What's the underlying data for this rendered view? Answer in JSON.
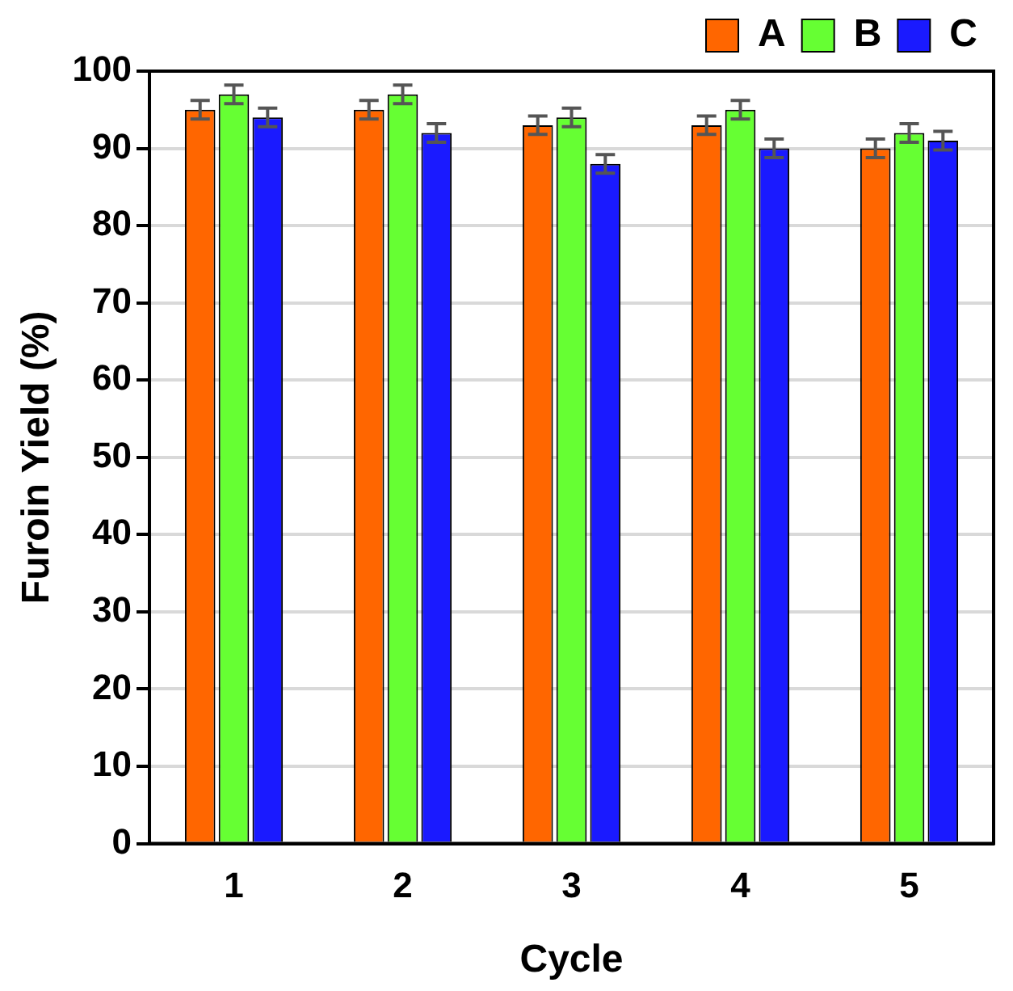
{
  "chart_data": {
    "type": "bar",
    "xlabel": "Cycle",
    "ylabel": "Furoin Yield (%)",
    "categories": [
      "1",
      "2",
      "3",
      "4",
      "5"
    ],
    "series": [
      {
        "name": "A",
        "color": "#ff6600",
        "values": [
          95,
          95,
          93,
          93,
          90
        ],
        "errors": [
          1.2,
          1.2,
          1.2,
          1.2,
          1.2
        ]
      },
      {
        "name": "B",
        "color": "#66ff33",
        "values": [
          97,
          97,
          94,
          95,
          92
        ],
        "errors": [
          1.2,
          1.2,
          1.2,
          1.2,
          1.2
        ]
      },
      {
        "name": "C",
        "color": "#1a1aff",
        "values": [
          94,
          92,
          88,
          90,
          91
        ],
        "errors": [
          1.2,
          1.2,
          1.2,
          1.2,
          1.2
        ]
      }
    ],
    "ylim": [
      0,
      100
    ],
    "yticks": [
      0,
      10,
      20,
      30,
      40,
      50,
      60,
      70,
      80,
      90,
      100
    ],
    "grid": "y",
    "legend": "top right"
  }
}
